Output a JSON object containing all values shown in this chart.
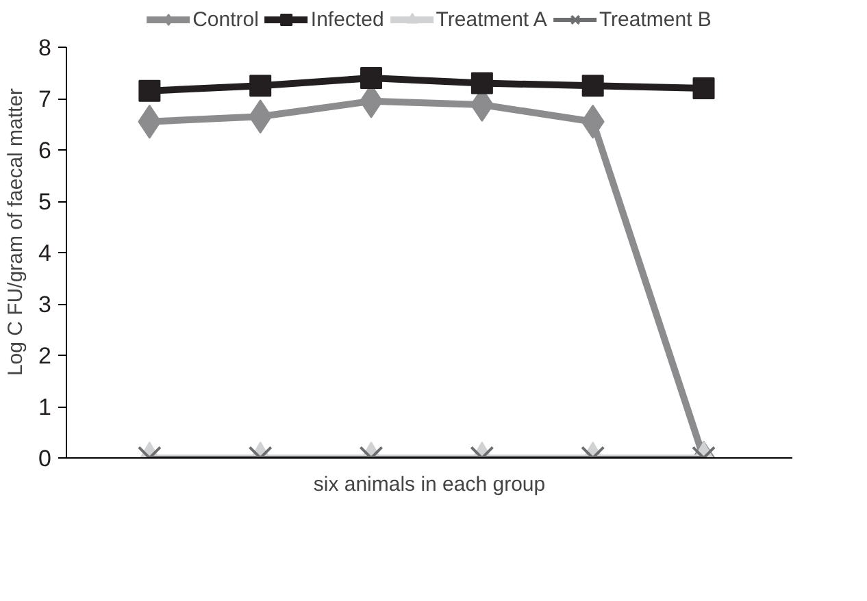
{
  "chart_data": {
    "type": "line",
    "xlabel": "six animals in each group",
    "ylabel": "Log C FU/gram of faecal matter",
    "categories": [
      null,
      null,
      null,
      null,
      null,
      null
    ],
    "series": [
      {
        "name": "Control",
        "color": "#8c8c8e",
        "marker": "diamond",
        "values": [
          6.55,
          6.65,
          6.95,
          6.88,
          6.55,
          0
        ]
      },
      {
        "name": "Infected",
        "color": "#231f20",
        "marker": "square",
        "values": [
          7.15,
          7.25,
          7.4,
          7.3,
          7.25,
          7.2
        ]
      },
      {
        "name": "Treatment A",
        "color": "#d1d2d3",
        "marker": "triangle",
        "values": [
          0,
          0,
          0,
          0,
          0,
          0
        ]
      },
      {
        "name": "Treatment B",
        "color": "#6d6e70",
        "marker": "cross",
        "values": [
          0,
          0,
          0,
          0,
          0,
          0
        ]
      }
    ],
    "ylim": [
      0,
      8
    ],
    "yticks": [
      0,
      1,
      2,
      3,
      4,
      5,
      6,
      7,
      8
    ],
    "grid": false,
    "legend": "top",
    "tick_labels": "y"
  }
}
